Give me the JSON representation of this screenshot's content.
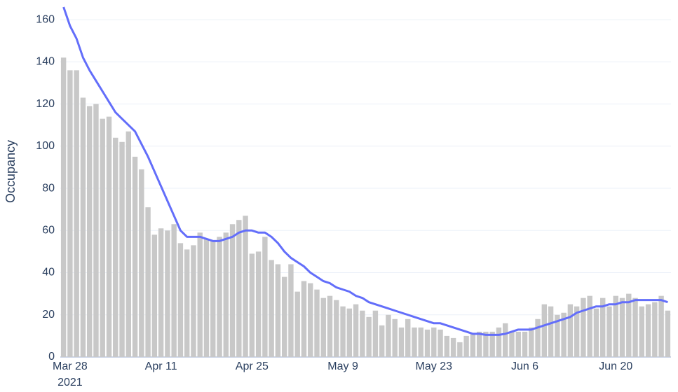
{
  "chart_data": {
    "type": "bar",
    "y_label": "Occupancy",
    "x": [
      "2021-03-27",
      "2021-03-28",
      "2021-03-29",
      "2021-03-30",
      "2021-03-31",
      "2021-04-01",
      "2021-04-02",
      "2021-04-03",
      "2021-04-04",
      "2021-04-05",
      "2021-04-06",
      "2021-04-07",
      "2021-04-08",
      "2021-04-09",
      "2021-04-10",
      "2021-04-11",
      "2021-04-12",
      "2021-04-13",
      "2021-04-14",
      "2021-04-15",
      "2021-04-16",
      "2021-04-17",
      "2021-04-18",
      "2021-04-19",
      "2021-04-20",
      "2021-04-21",
      "2021-04-22",
      "2021-04-23",
      "2021-04-24",
      "2021-04-25",
      "2021-04-26",
      "2021-04-27",
      "2021-04-28",
      "2021-04-29",
      "2021-04-30",
      "2021-05-01",
      "2021-05-02",
      "2021-05-03",
      "2021-05-04",
      "2021-05-05",
      "2021-05-06",
      "2021-05-07",
      "2021-05-08",
      "2021-05-09",
      "2021-05-10",
      "2021-05-11",
      "2021-05-12",
      "2021-05-13",
      "2021-05-14",
      "2021-05-15",
      "2021-05-16",
      "2021-05-17",
      "2021-05-18",
      "2021-05-19",
      "2021-05-20",
      "2021-05-21",
      "2021-05-22",
      "2021-05-23",
      "2021-05-24",
      "2021-05-25",
      "2021-05-26",
      "2021-05-27",
      "2021-05-28",
      "2021-05-29",
      "2021-05-30",
      "2021-05-31",
      "2021-06-01",
      "2021-06-02",
      "2021-06-03",
      "2021-06-04",
      "2021-06-05",
      "2021-06-06",
      "2021-06-07",
      "2021-06-08",
      "2021-06-09",
      "2021-06-10",
      "2021-06-11",
      "2021-06-12",
      "2021-06-13",
      "2021-06-14",
      "2021-06-15",
      "2021-06-16",
      "2021-06-17",
      "2021-06-18",
      "2021-06-19",
      "2021-06-20",
      "2021-06-21",
      "2021-06-22",
      "2021-06-23",
      "2021-06-24",
      "2021-06-25",
      "2021-06-26",
      "2021-06-27",
      "2021-06-28"
    ],
    "series": [
      {
        "type": "bar",
        "color": "#c8c8c8",
        "values": [
          142,
          136,
          136,
          123,
          119,
          120,
          113,
          114,
          104,
          102,
          107,
          95,
          89,
          71,
          58,
          61,
          60,
          63,
          54,
          51,
          53,
          59,
          56,
          55,
          57,
          59,
          63,
          65,
          67,
          49,
          50,
          57,
          46,
          44,
          38,
          44,
          31,
          36,
          35,
          32,
          28,
          29,
          27,
          24,
          23,
          25,
          22,
          19,
          22,
          15,
          20,
          18,
          14,
          18,
          14,
          14,
          13,
          14,
          13,
          10,
          9,
          7,
          10,
          11,
          12,
          12,
          12,
          14,
          16,
          12,
          12,
          12,
          14,
          18,
          25,
          24,
          20,
          21,
          25,
          24,
          28,
          29,
          23,
          28,
          24,
          29,
          28,
          30,
          28,
          24,
          25,
          26,
          29,
          22
        ]
      },
      {
        "type": "line",
        "color": "#636efa",
        "values": [
          166,
          157,
          151,
          142,
          136,
          131,
          126,
          121,
          116,
          113,
          110,
          107,
          101,
          95,
          88,
          81,
          74,
          67,
          60,
          57,
          57,
          57,
          56,
          55,
          55,
          56,
          57,
          59,
          60,
          60,
          59,
          59,
          57,
          54,
          50,
          47,
          45,
          43,
          40,
          38,
          36,
          35,
          33,
          32,
          31,
          29,
          28,
          26,
          25,
          24,
          23,
          22,
          21,
          20,
          19,
          18,
          17,
          16,
          16,
          15,
          14,
          13,
          12,
          11,
          11,
          10.5,
          10.5,
          10.5,
          11,
          12,
          13,
          13,
          13,
          14,
          15,
          16,
          17,
          18,
          19,
          21,
          22,
          23,
          24,
          24,
          25,
          25,
          26,
          26,
          27,
          27,
          27,
          27,
          27,
          26
        ]
      }
    ],
    "xlim": [
      "2021-03-26T12:00",
      "2021-06-28T12:00"
    ],
    "xticks": [
      {
        "value": "2021-03-28",
        "label": "Mar 28"
      },
      {
        "value": "2021-04-11",
        "label": "Apr 11"
      },
      {
        "value": "2021-04-25",
        "label": "Apr 25"
      },
      {
        "value": "2021-05-09",
        "label": "May 9"
      },
      {
        "value": "2021-05-23",
        "label": "May 23"
      },
      {
        "value": "2021-06-06",
        "label": "Jun 6"
      },
      {
        "value": "2021-06-20",
        "label": "Jun 20"
      }
    ],
    "xtick_year": "2021",
    "ylim": [
      0,
      167
    ],
    "yticks": [
      0,
      20,
      40,
      60,
      80,
      100,
      120,
      140,
      160
    ],
    "grid": true
  }
}
